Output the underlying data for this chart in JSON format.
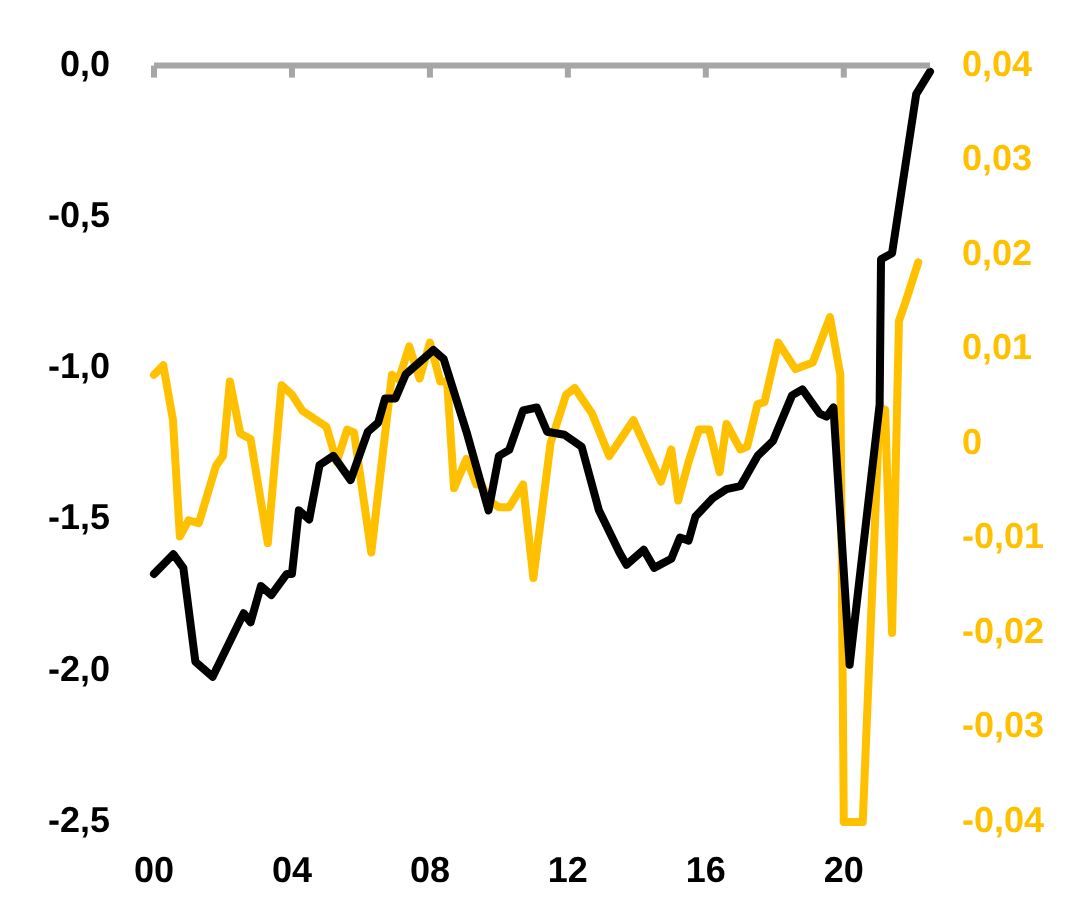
{
  "chart_data": {
    "type": "line",
    "xlim": [
      2000,
      2022.5
    ],
    "xticks": [
      {
        "value": 2000,
        "label": "00"
      },
      {
        "value": 2004,
        "label": "04"
      },
      {
        "value": 2008,
        "label": "08"
      },
      {
        "value": 2012,
        "label": "12"
      },
      {
        "value": 2016,
        "label": "16"
      },
      {
        "value": 2020,
        "label": "20"
      }
    ],
    "ylim": [
      -2.5,
      0
    ],
    "yticks": [
      {
        "value": -2.5,
        "label": "-2,5"
      },
      {
        "value": -2,
        "label": "-2,0"
      },
      {
        "value": -1.5,
        "label": "-1,5"
      },
      {
        "value": -1,
        "label": "-1,0"
      },
      {
        "value": -0.5,
        "label": "-0,5"
      },
      {
        "value": 0,
        "label": "0,0"
      }
    ],
    "y2lim": [
      -0.04,
      0.04
    ],
    "y2ticks": [
      {
        "value": -0.04,
        "label": "-0,04"
      },
      {
        "value": -0.03,
        "label": "-0,03"
      },
      {
        "value": -0.02,
        "label": "-0,02"
      },
      {
        "value": -0.01,
        "label": "-0,01"
      },
      {
        "value": 0,
        "label": "0"
      },
      {
        "value": 0.01,
        "label": "0,01"
      },
      {
        "value": 0.02,
        "label": "0,02"
      },
      {
        "value": 0.03,
        "label": "0,03"
      },
      {
        "value": 0.04,
        "label": "0,04"
      }
    ],
    "grid": false,
    "legend": false,
    "marker": "none",
    "line_style": "solid",
    "series": [
      {
        "color": "#000000",
        "x": [
          2000,
          2000.56,
          2000.85,
          2001.2,
          2001.7,
          2002.6,
          2002.8,
          2003.1,
          2003.4,
          2003.85,
          2004.0,
          2004.2,
          2004.5,
          2004.8,
          2005.2,
          2005.7,
          2006.2,
          2006.5,
          2006.7,
          2007.0,
          2007.3,
          2008.1,
          2008.4,
          2009.06,
          2009.7,
          2010.0,
          2010.3,
          2010.7,
          2011.1,
          2011.4,
          2011.9,
          2012.4,
          2012.9,
          2013.5,
          2013.7,
          2014.2,
          2014.5,
          2015.0,
          2015.25,
          2015.5,
          2015.7,
          2016.2,
          2016.6,
          2017.0,
          2017.5,
          2017.95,
          2018.5,
          2018.8,
          2019.3,
          2019.5,
          2019.7,
          2020.17,
          2021.04,
          2021.08,
          2021.4,
          2022.1,
          2022.5
        ],
        "values": [
          -1.68,
          -1.615,
          -1.66,
          -1.97,
          -2.02,
          -1.81,
          -1.84,
          -1.72,
          -1.75,
          -1.68,
          -1.68,
          -1.47,
          -1.5,
          -1.32,
          -1.29,
          -1.37,
          -1.21,
          -1.18,
          -1.1,
          -1.1,
          -1.02,
          -0.94,
          -0.97,
          -1.21,
          -1.47,
          -1.29,
          -1.27,
          -1.14,
          -1.13,
          -1.21,
          -1.22,
          -1.26,
          -1.47,
          -1.61,
          -1.65,
          -1.6,
          -1.66,
          -1.63,
          -1.56,
          -1.57,
          -1.49,
          -1.43,
          -1.4,
          -1.39,
          -1.29,
          -1.24,
          -1.09,
          -1.07,
          -1.15,
          -1.16,
          -1.13,
          -1.98,
          -1.12,
          -0.64,
          -0.62,
          -0.094,
          -0.02
        ]
      },
      {
        "color": "#ffc000",
        "axis": "y2",
        "x": [
          2000,
          2000.27,
          2000.55,
          2000.75,
          2001.0,
          2001.3,
          2001.8,
          2002.0,
          2002.2,
          2002.5,
          2002.8,
          2003.3,
          2003.7,
          2004.0,
          2004.3,
          2005.0,
          2005.3,
          2005.6,
          2005.8,
          2006.3,
          2006.9,
          2007.1,
          2007.4,
          2007.7,
          2008.0,
          2008.3,
          2008.5,
          2008.7,
          2009.06,
          2009.35,
          2009.5,
          2009.7,
          2010.0,
          2010.3,
          2010.7,
          2011.0,
          2011.5,
          2011.95,
          2012.2,
          2012.7,
          2013.2,
          2013.9,
          2014.7,
          2015.0,
          2015.2,
          2015.5,
          2015.8,
          2016.1,
          2016.4,
          2016.6,
          2017.0,
          2017.2,
          2017.5,
          2017.7,
          2018.1,
          2018.6,
          2019.1,
          2019.6,
          2019.9,
          2020.0,
          2020.3,
          2020.55,
          2021.04,
          2021.2,
          2021.4,
          2021.6,
          2021.8,
          2022.16
        ],
        "values": [
          0.0073,
          0.0083,
          0.0025,
          -0.0098,
          -0.0081,
          -0.0084,
          -0.0023,
          -0.0013,
          0.0066,
          0.0011,
          0.0005,
          -0.0105,
          0.0062,
          0.0052,
          0.0035,
          0.0018,
          -0.0019,
          0.0015,
          0.0012,
          -0.0115,
          0.0073,
          0.0068,
          0.0103,
          0.0069,
          0.0107,
          0.0066,
          0.0066,
          -0.0047,
          -0.0016,
          -0.0043,
          -0.0043,
          -0.006,
          -0.0067,
          -0.0067,
          -0.0043,
          -0.0142,
          0.0001,
          0.0052,
          0.0059,
          0.0032,
          -0.0013,
          0.0025,
          -0.004,
          -0.0006,
          -0.006,
          -0.0019,
          0.0015,
          0.0015,
          -0.003,
          0.0021,
          -0.0006,
          -0.0003,
          0.0042,
          0.0044,
          0.0107,
          0.0079,
          0.0086,
          0.0134,
          0.0073,
          -0.04,
          -0.04,
          -0.04,
          0.0038,
          0.0036,
          -0.02,
          0.013,
          0.0151,
          0.0192
        ]
      }
    ]
  }
}
